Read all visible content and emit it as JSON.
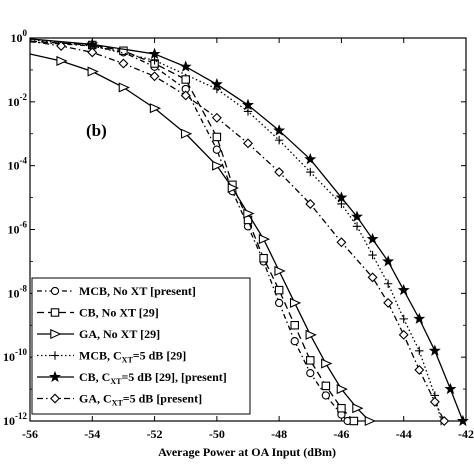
{
  "chart_data": {
    "type": "line",
    "panel_label": "(b)",
    "xlabel": "Average Power at OA Input (dBm)",
    "ylabel": "",
    "xlim": [
      -56,
      -42
    ],
    "ylim_exp": [
      -12,
      0
    ],
    "y_log_scale": true,
    "x_ticks": [
      {
        "value": -56,
        "label": "-56"
      },
      {
        "value": -54,
        "label": "-54"
      },
      {
        "value": -52,
        "label": "-52"
      },
      {
        "value": -50,
        "label": "-50"
      },
      {
        "value": -48,
        "label": "-48"
      },
      {
        "value": -46,
        "label": "-46"
      },
      {
        "value": -44,
        "label": "-44"
      },
      {
        "value": -42,
        "label": "-42"
      }
    ],
    "y_ticks": [
      {
        "exp": 0,
        "label": "10",
        "sup": "0"
      },
      {
        "exp": -2,
        "label": "10",
        "sup": "-2"
      },
      {
        "exp": -4,
        "label": "10",
        "sup": "-4"
      },
      {
        "exp": -6,
        "label": "10",
        "sup": "-6"
      },
      {
        "exp": -8,
        "label": "10",
        "sup": "-8"
      },
      {
        "exp": -10,
        "label": "10",
        "sup": "-10"
      },
      {
        "exp": -12,
        "label": "10",
        "sup": "-12"
      }
    ],
    "grid": false,
    "legend_position": "bottom-left",
    "series": [
      {
        "name": "MCB, No XT [present]",
        "legend_parts": [
          {
            "t": "MCB, No XT [present]"
          }
        ],
        "marker": "circle",
        "dash": "5,3,1.5,3",
        "x": [
          -56,
          -54,
          -53,
          -52,
          -51,
          -50,
          -49.5,
          -49,
          -48.5,
          -48,
          -47.5,
          -47,
          -46.5,
          -46,
          -45.8
        ],
        "exp": [
          -0.12,
          -0.25,
          -0.45,
          -0.9,
          -1.6,
          -3.5,
          -4.8,
          -5.9,
          -7.0,
          -8.3,
          -9.5,
          -10.5,
          -11.2,
          -11.8,
          -12
        ]
      },
      {
        "name": "CB, No XT [29]",
        "legend_parts": [
          {
            "t": "CB, No XT [29]"
          }
        ],
        "marker": "square",
        "dash": "7,4",
        "x": [
          -56,
          -54,
          -53,
          -52,
          -51,
          -50,
          -49.5,
          -49,
          -48.5,
          -48,
          -47.5,
          -47,
          -46.5,
          -46,
          -45.6
        ],
        "exp": [
          -0.1,
          -0.22,
          -0.4,
          -0.8,
          -1.3,
          -3.1,
          -4.6,
          -5.7,
          -6.9,
          -7.9,
          -9.0,
          -10.1,
          -10.9,
          -11.6,
          -12
        ]
      },
      {
        "name": "GA, No XT [29]",
        "legend_parts": [
          {
            "t": "GA, No XT [29]"
          }
        ],
        "marker": "triangle",
        "dash": "",
        "x": [
          -56,
          -55,
          -54,
          -53,
          -52,
          -51,
          -50,
          -49.5,
          -49,
          -48.5,
          -48,
          -47.5,
          -47,
          -46.5,
          -46,
          -45.5,
          -45.1
        ],
        "exp": [
          -0.5,
          -0.72,
          -1.05,
          -1.55,
          -2.2,
          -3.0,
          -4.0,
          -4.7,
          -5.5,
          -6.3,
          -7.3,
          -8.3,
          -9.3,
          -10.2,
          -11.0,
          -11.6,
          -12
        ]
      },
      {
        "name": "MCB, C_XT=5 dB [29]",
        "legend_parts": [
          {
            "t": "MCB, C"
          },
          {
            "t": "XT",
            "sub": true
          },
          {
            "t": "=5 dB [29]"
          }
        ],
        "marker": "plus",
        "dash": "1.5,2.5",
        "x": [
          -56,
          -54,
          -52,
          -50,
          -49,
          -48,
          -47,
          -46,
          -45.5,
          -45,
          -44.5,
          -44,
          -43.5,
          -43,
          -42.8
        ],
        "exp": [
          -0.05,
          -0.25,
          -0.7,
          -1.6,
          -2.3,
          -3.2,
          -4.2,
          -5.2,
          -5.9,
          -6.8,
          -7.7,
          -8.8,
          -9.8,
          -11.2,
          -12
        ]
      },
      {
        "name": "CB, C_XT=5 dB [29], [present]",
        "legend_parts": [
          {
            "t": "CB, C"
          },
          {
            "t": "XT",
            "sub": true
          },
          {
            "t": "=5 dB [29], [present]"
          }
        ],
        "marker": "star",
        "dash": "",
        "x": [
          -56,
          -54,
          -52,
          -51,
          -50,
          -49,
          -48,
          -47,
          -46,
          -45.5,
          -45,
          -44.5,
          -44,
          -43.5,
          -43,
          -42.5,
          -42.1
        ],
        "exp": [
          -0.03,
          -0.2,
          -0.5,
          -0.9,
          -1.45,
          -2.1,
          -2.9,
          -3.8,
          -5.0,
          -5.6,
          -6.3,
          -7.0,
          -7.9,
          -8.8,
          -9.8,
          -11.0,
          -12
        ]
      },
      {
        "name": "GA, C_XT=5 dB [present]",
        "legend_parts": [
          {
            "t": "GA, C"
          },
          {
            "t": "XT",
            "sub": true
          },
          {
            "t": "=5 dB [present]"
          }
        ],
        "marker": "diamond",
        "dash": "6,3,1.5,3",
        "x": [
          -56,
          -55,
          -54,
          -53,
          -52,
          -51,
          -50,
          -49,
          -48,
          -47,
          -46,
          -45,
          -44.5,
          -44,
          -43.5,
          -43,
          -42.7
        ],
        "exp": [
          -0.1,
          -0.25,
          -0.45,
          -0.8,
          -1.2,
          -1.8,
          -2.5,
          -3.3,
          -4.2,
          -5.2,
          -6.4,
          -7.5,
          -8.3,
          -9.3,
          -10.4,
          -11.4,
          -12
        ]
      }
    ]
  }
}
